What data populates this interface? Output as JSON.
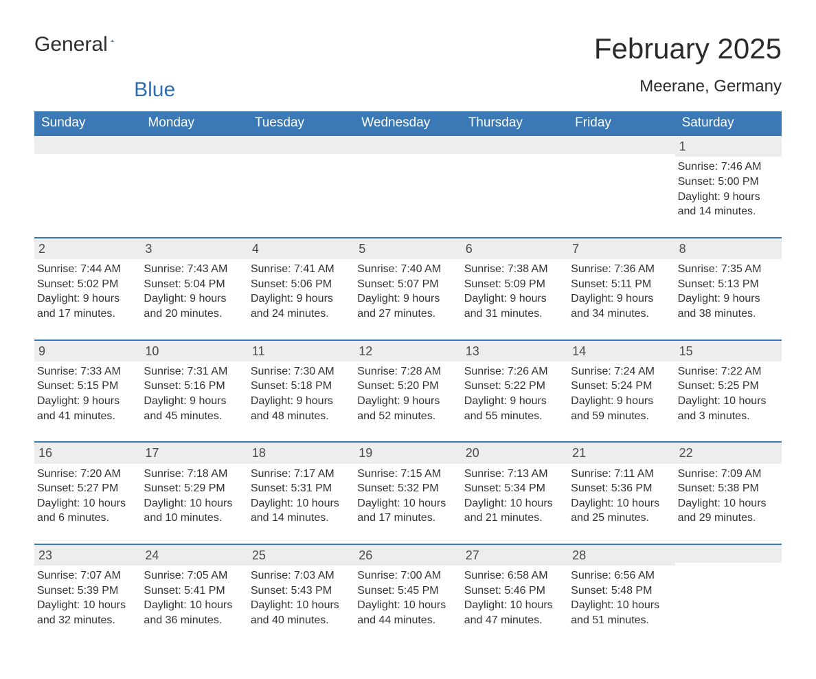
{
  "logo": {
    "text1": "General",
    "text2": "Blue",
    "icon_color": "#2f6fb0"
  },
  "title": "February 2025",
  "location": "Meerane, Germany",
  "colors": {
    "header_bg": "#3a78b6",
    "header_text": "#ffffff",
    "daynum_bg": "#ededed",
    "week_border": "#3a78b6",
    "body_text": "#333333"
  },
  "dow": [
    "Sunday",
    "Monday",
    "Tuesday",
    "Wednesday",
    "Thursday",
    "Friday",
    "Saturday"
  ],
  "weeks": [
    [
      {
        "n": "",
        "lines": []
      },
      {
        "n": "",
        "lines": []
      },
      {
        "n": "",
        "lines": []
      },
      {
        "n": "",
        "lines": []
      },
      {
        "n": "",
        "lines": []
      },
      {
        "n": "",
        "lines": []
      },
      {
        "n": "1",
        "lines": [
          "Sunrise: 7:46 AM",
          "Sunset: 5:00 PM",
          "Daylight: 9 hours and 14 minutes."
        ]
      }
    ],
    [
      {
        "n": "2",
        "lines": [
          "Sunrise: 7:44 AM",
          "Sunset: 5:02 PM",
          "Daylight: 9 hours and 17 minutes."
        ]
      },
      {
        "n": "3",
        "lines": [
          "Sunrise: 7:43 AM",
          "Sunset: 5:04 PM",
          "Daylight: 9 hours and 20 minutes."
        ]
      },
      {
        "n": "4",
        "lines": [
          "Sunrise: 7:41 AM",
          "Sunset: 5:06 PM",
          "Daylight: 9 hours and 24 minutes."
        ]
      },
      {
        "n": "5",
        "lines": [
          "Sunrise: 7:40 AM",
          "Sunset: 5:07 PM",
          "Daylight: 9 hours and 27 minutes."
        ]
      },
      {
        "n": "6",
        "lines": [
          "Sunrise: 7:38 AM",
          "Sunset: 5:09 PM",
          "Daylight: 9 hours and 31 minutes."
        ]
      },
      {
        "n": "7",
        "lines": [
          "Sunrise: 7:36 AM",
          "Sunset: 5:11 PM",
          "Daylight: 9 hours and 34 minutes."
        ]
      },
      {
        "n": "8",
        "lines": [
          "Sunrise: 7:35 AM",
          "Sunset: 5:13 PM",
          "Daylight: 9 hours and 38 minutes."
        ]
      }
    ],
    [
      {
        "n": "9",
        "lines": [
          "Sunrise: 7:33 AM",
          "Sunset: 5:15 PM",
          "Daylight: 9 hours and 41 minutes."
        ]
      },
      {
        "n": "10",
        "lines": [
          "Sunrise: 7:31 AM",
          "Sunset: 5:16 PM",
          "Daylight: 9 hours and 45 minutes."
        ]
      },
      {
        "n": "11",
        "lines": [
          "Sunrise: 7:30 AM",
          "Sunset: 5:18 PM",
          "Daylight: 9 hours and 48 minutes."
        ]
      },
      {
        "n": "12",
        "lines": [
          "Sunrise: 7:28 AM",
          "Sunset: 5:20 PM",
          "Daylight: 9 hours and 52 minutes."
        ]
      },
      {
        "n": "13",
        "lines": [
          "Sunrise: 7:26 AM",
          "Sunset: 5:22 PM",
          "Daylight: 9 hours and 55 minutes."
        ]
      },
      {
        "n": "14",
        "lines": [
          "Sunrise: 7:24 AM",
          "Sunset: 5:24 PM",
          "Daylight: 9 hours and 59 minutes."
        ]
      },
      {
        "n": "15",
        "lines": [
          "Sunrise: 7:22 AM",
          "Sunset: 5:25 PM",
          "Daylight: 10 hours and 3 minutes."
        ]
      }
    ],
    [
      {
        "n": "16",
        "lines": [
          "Sunrise: 7:20 AM",
          "Sunset: 5:27 PM",
          "Daylight: 10 hours and 6 minutes."
        ]
      },
      {
        "n": "17",
        "lines": [
          "Sunrise: 7:18 AM",
          "Sunset: 5:29 PM",
          "Daylight: 10 hours and 10 minutes."
        ]
      },
      {
        "n": "18",
        "lines": [
          "Sunrise: 7:17 AM",
          "Sunset: 5:31 PM",
          "Daylight: 10 hours and 14 minutes."
        ]
      },
      {
        "n": "19",
        "lines": [
          "Sunrise: 7:15 AM",
          "Sunset: 5:32 PM",
          "Daylight: 10 hours and 17 minutes."
        ]
      },
      {
        "n": "20",
        "lines": [
          "Sunrise: 7:13 AM",
          "Sunset: 5:34 PM",
          "Daylight: 10 hours and 21 minutes."
        ]
      },
      {
        "n": "21",
        "lines": [
          "Sunrise: 7:11 AM",
          "Sunset: 5:36 PM",
          "Daylight: 10 hours and 25 minutes."
        ]
      },
      {
        "n": "22",
        "lines": [
          "Sunrise: 7:09 AM",
          "Sunset: 5:38 PM",
          "Daylight: 10 hours and 29 minutes."
        ]
      }
    ],
    [
      {
        "n": "23",
        "lines": [
          "Sunrise: 7:07 AM",
          "Sunset: 5:39 PM",
          "Daylight: 10 hours and 32 minutes."
        ]
      },
      {
        "n": "24",
        "lines": [
          "Sunrise: 7:05 AM",
          "Sunset: 5:41 PM",
          "Daylight: 10 hours and 36 minutes."
        ]
      },
      {
        "n": "25",
        "lines": [
          "Sunrise: 7:03 AM",
          "Sunset: 5:43 PM",
          "Daylight: 10 hours and 40 minutes."
        ]
      },
      {
        "n": "26",
        "lines": [
          "Sunrise: 7:00 AM",
          "Sunset: 5:45 PM",
          "Daylight: 10 hours and 44 minutes."
        ]
      },
      {
        "n": "27",
        "lines": [
          "Sunrise: 6:58 AM",
          "Sunset: 5:46 PM",
          "Daylight: 10 hours and 47 minutes."
        ]
      },
      {
        "n": "28",
        "lines": [
          "Sunrise: 6:56 AM",
          "Sunset: 5:48 PM",
          "Daylight: 10 hours and 51 minutes."
        ]
      },
      {
        "n": "",
        "lines": []
      }
    ]
  ]
}
